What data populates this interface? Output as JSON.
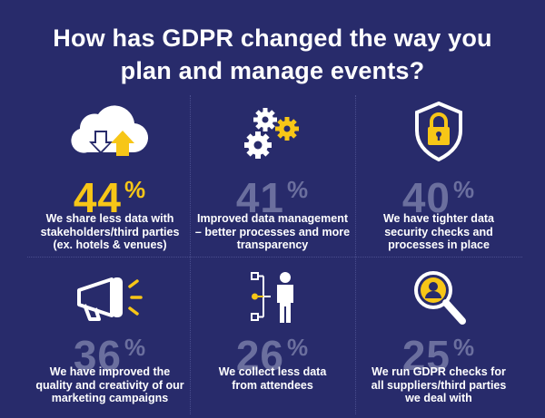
{
  "title": {
    "line1": "How has GDPR changed the way you",
    "line2": "plan and manage events?"
  },
  "colors": {
    "background": "#282b6b",
    "accent": "#f7c617",
    "muted": "#6b6f9e",
    "text": "#ffffff"
  },
  "stats": [
    {
      "icon": "cloud-transfer-icon",
      "number": "44",
      "symbol": "%",
      "highlight": true,
      "lines": [
        "We share less data with",
        "stakeholders/third parties",
        "(ex. hotels & venues)"
      ]
    },
    {
      "icon": "gears-icon",
      "number": "41",
      "symbol": "%",
      "highlight": false,
      "lines": [
        "Improved data management",
        "– better processes and more",
        "transparency"
      ]
    },
    {
      "icon": "shield-lock-icon",
      "number": "40",
      "symbol": "%",
      "highlight": false,
      "lines": [
        "We have tighter data",
        "security checks and",
        "processes in place"
      ]
    },
    {
      "icon": "megaphone-icon",
      "number": "36",
      "symbol": "%",
      "highlight": false,
      "lines": [
        "We have improved the",
        "quality and creativity of our",
        "marketing campaigns"
      ]
    },
    {
      "icon": "person-data-icon",
      "number": "26",
      "symbol": "%",
      "highlight": false,
      "lines": [
        "We collect less data",
        "from attendees"
      ]
    },
    {
      "icon": "magnifier-person-icon",
      "number": "25",
      "symbol": "%",
      "highlight": false,
      "lines": [
        "We run GDPR checks for",
        "all suppliers/third parties",
        "we deal with"
      ]
    }
  ]
}
